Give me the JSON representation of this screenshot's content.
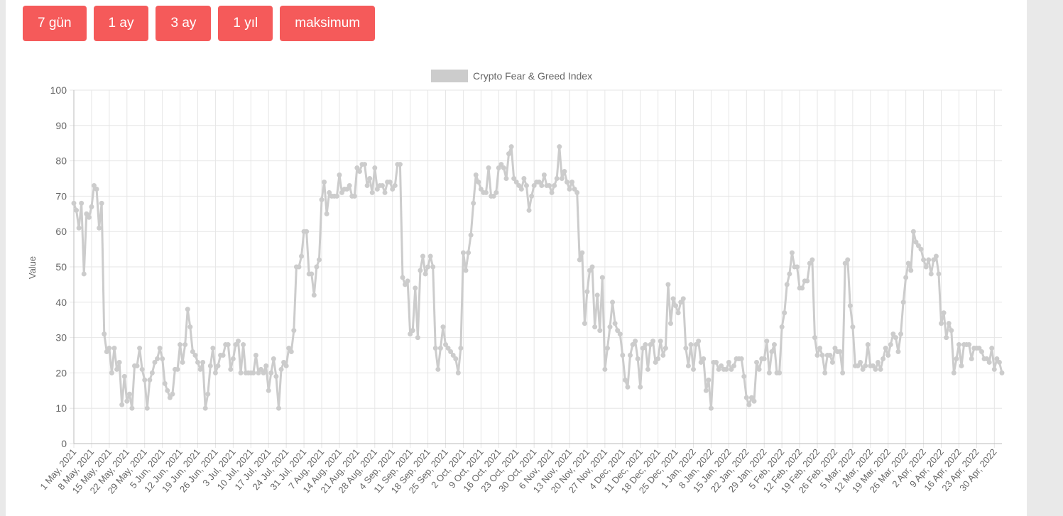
{
  "range_buttons": [
    "7 gün",
    "1 ay",
    "3 ay",
    "1 yıl",
    "maksimum"
  ],
  "chart_data": {
    "type": "line",
    "title": "",
    "xlabel": "",
    "ylabel": "Value",
    "ylim": [
      0,
      100
    ],
    "yticks": [
      0,
      10,
      20,
      30,
      40,
      50,
      60,
      70,
      80,
      90,
      100
    ],
    "grid": true,
    "legend_position": "top",
    "x_tick_labels": [
      "1 May, 2021",
      "8 May, 2021",
      "15 May, 2021",
      "22 May, 2021",
      "29 May, 2021",
      "5 Jun, 2021",
      "12 Jun, 2021",
      "19 Jun, 2021",
      "26 Jun, 2021",
      "3 Jul, 2021",
      "10 Jul, 2021",
      "17 Jul, 2021",
      "24 Jul, 2021",
      "31 Jul, 2021",
      "7 Aug, 2021",
      "14 Aug, 2021",
      "21 Aug, 2021",
      "28 Aug, 2021",
      "4 Sep, 2021",
      "11 Sep, 2021",
      "18 Sep, 2021",
      "25 Sep, 2021",
      "2 Oct, 2021",
      "9 Oct, 2021",
      "16 Oct, 2021",
      "23 Oct, 2021",
      "30 Oct, 2021",
      "6 Nov, 2021",
      "13 Nov, 2021",
      "20 Nov, 2021",
      "27 Nov, 2021",
      "4 Dec, 2021",
      "11 Dec, 2021",
      "18 Dec, 2021",
      "25 Dec, 2021",
      "1 Jan, 2022",
      "8 Jan, 2022",
      "15 Jan, 2022",
      "22 Jan, 2022",
      "29 Jan, 2022",
      "5 Feb, 2022",
      "12 Feb, 2022",
      "19 Feb, 2022",
      "26 Feb, 2022",
      "5 Mar, 2022",
      "12 Mar, 2022",
      "19 Mar, 2022",
      "26 Mar, 2022",
      "2 Apr, 2022",
      "9 Apr, 2022",
      "16 Apr, 2022",
      "23 Apr, 2022",
      "30 Apr, 2022"
    ],
    "series": [
      {
        "name": "Crypto Fear & Greed Index",
        "color": "#cccccc",
        "values": [
          68,
          66,
          61,
          68,
          48,
          65,
          64,
          67,
          73,
          72,
          61,
          68,
          31,
          26,
          27,
          20,
          27,
          21,
          23,
          11,
          19,
          12,
          14,
          10,
          22,
          22,
          27,
          21,
          18,
          10,
          18,
          20,
          23,
          24,
          27,
          24,
          17,
          15,
          13,
          14,
          21,
          21,
          28,
          23,
          28,
          38,
          33,
          26,
          25,
          23,
          21,
          23,
          10,
          14,
          22,
          27,
          20,
          22,
          25,
          25,
          28,
          28,
          21,
          24,
          28,
          29,
          20,
          28,
          20,
          20,
          20,
          20,
          25,
          20,
          21,
          20,
          22,
          15,
          20,
          24,
          19,
          10,
          21,
          23,
          22,
          27,
          26,
          32,
          50,
          50,
          53,
          60,
          60,
          48,
          48,
          42,
          50,
          52,
          69,
          74,
          65,
          71,
          70,
          70,
          70,
          76,
          71,
          72,
          72,
          73,
          70,
          70,
          78,
          77,
          79,
          79,
          73,
          75,
          71,
          78,
          72,
          73,
          73,
          71,
          74,
          74,
          72,
          73,
          79,
          79,
          47,
          45,
          46,
          31,
          32,
          44,
          30,
          49,
          53,
          48,
          50,
          53,
          50,
          27,
          21,
          27,
          33,
          28,
          27,
          26,
          25,
          24,
          20,
          27,
          54,
          49,
          54,
          59,
          68,
          76,
          74,
          72,
          71,
          71,
          78,
          70,
          70,
          71,
          78,
          79,
          78,
          75,
          82,
          84,
          75,
          74,
          73,
          72,
          75,
          73,
          66,
          70,
          73,
          74,
          74,
          73,
          76,
          73,
          73,
          71,
          73,
          75,
          84,
          75,
          77,
          74,
          72,
          74,
          72,
          71,
          52,
          54,
          34,
          43,
          49,
          50,
          33,
          42,
          32,
          47,
          21,
          27,
          33,
          40,
          34,
          32,
          31,
          25,
          18,
          16,
          25,
          28,
          29,
          24,
          16,
          27,
          28,
          21,
          28,
          29,
          23,
          24,
          29,
          25,
          27,
          45,
          34,
          41,
          39,
          37,
          40,
          41,
          27,
          22,
          28,
          21,
          28,
          29,
          23,
          24,
          15,
          18,
          10,
          23,
          23,
          21,
          22,
          21,
          21,
          23,
          21,
          22,
          24,
          24,
          24,
          19,
          13,
          11,
          13,
          12,
          23,
          21,
          24,
          24,
          29,
          20,
          26,
          28,
          20,
          20,
          33,
          37,
          45,
          48,
          54,
          50,
          50,
          44,
          44,
          46,
          46,
          51,
          52,
          30,
          25,
          27,
          25,
          20,
          25,
          25,
          23,
          27,
          26,
          26,
          20,
          51,
          52,
          39,
          33,
          22,
          22,
          23,
          21,
          22,
          28,
          22,
          22,
          21,
          23,
          21,
          24,
          27,
          25,
          28,
          31,
          30,
          26,
          31,
          40,
          47,
          51,
          49,
          60,
          57,
          56,
          55,
          52,
          50,
          52,
          48,
          52,
          53,
          48,
          34,
          37,
          30,
          34,
          32,
          20,
          24,
          28,
          22,
          28,
          28,
          28,
          24,
          27,
          27,
          27,
          26,
          24,
          24,
          23,
          27,
          21,
          24,
          23,
          20
        ]
      }
    ]
  }
}
